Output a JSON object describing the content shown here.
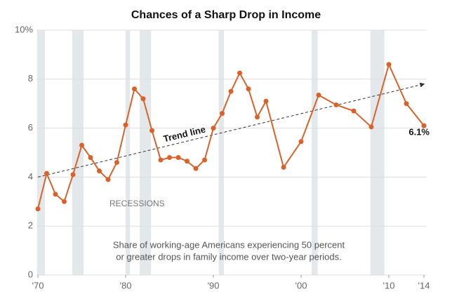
{
  "chart_data": {
    "type": "line",
    "title": "Chances of a Sharp Drop in Income",
    "x": [
      1970,
      1971,
      1972,
      1973,
      1974,
      1975,
      1976,
      1977,
      1978,
      1979,
      1980,
      1981,
      1982,
      1983,
      1984,
      1985,
      1986,
      1987,
      1988,
      1989,
      1990,
      1991,
      1992,
      1993,
      1994,
      1995,
      1996,
      1998,
      2000,
      2002,
      2004,
      2006,
      2008,
      2010,
      2012,
      2014
    ],
    "series": [
      {
        "color": "#d9622b",
        "values": [
          2.7,
          4.15,
          3.3,
          3.0,
          4.1,
          5.3,
          4.8,
          4.25,
          3.9,
          4.6,
          6.13,
          7.6,
          7.2,
          5.9,
          4.7,
          4.8,
          4.8,
          4.65,
          4.35,
          4.7,
          6.0,
          6.6,
          7.5,
          8.25,
          7.6,
          6.45,
          7.1,
          4.4,
          5.45,
          7.35,
          6.95,
          6.7,
          6.05,
          8.6,
          7.0,
          6.1
        ]
      }
    ],
    "xlim": [
      1970,
      2014
    ],
    "xticks": [
      {
        "value": 1970,
        "label": "'70"
      },
      {
        "value": 1980,
        "label": "'80"
      },
      {
        "value": 1990,
        "label": "'90"
      },
      {
        "value": 2000,
        "label": "'00"
      },
      {
        "value": 2010,
        "label": "'10"
      },
      {
        "value": 2014,
        "label": "'14"
      }
    ],
    "ylim": [
      0,
      10
    ],
    "yticks": [
      0,
      2,
      4,
      6,
      8,
      {
        "value": 10,
        "label": "10%"
      }
    ],
    "grid": true,
    "recessions_label": "RECESSIONS",
    "recessions": [
      [
        1969.9,
        1970.8
      ],
      [
        1973.9,
        1975.2
      ],
      [
        1980.0,
        1980.5
      ],
      [
        1981.6,
        1982.9
      ],
      [
        1990.6,
        1991.2
      ],
      [
        2001.2,
        2001.9
      ],
      [
        2007.9,
        2009.5
      ]
    ],
    "recession_color": "#e5e8eb",
    "trend": {
      "label": "Trend line",
      "x": [
        1970,
        2014
      ],
      "values": [
        4.0,
        7.8
      ]
    },
    "annotations": [
      {
        "text": "6.1%",
        "x": 2014,
        "y": 6.1
      }
    ],
    "note": [
      "Share of working-age Americans experiencing 50 percent",
      "or greater drops in family income over two-year periods."
    ]
  }
}
